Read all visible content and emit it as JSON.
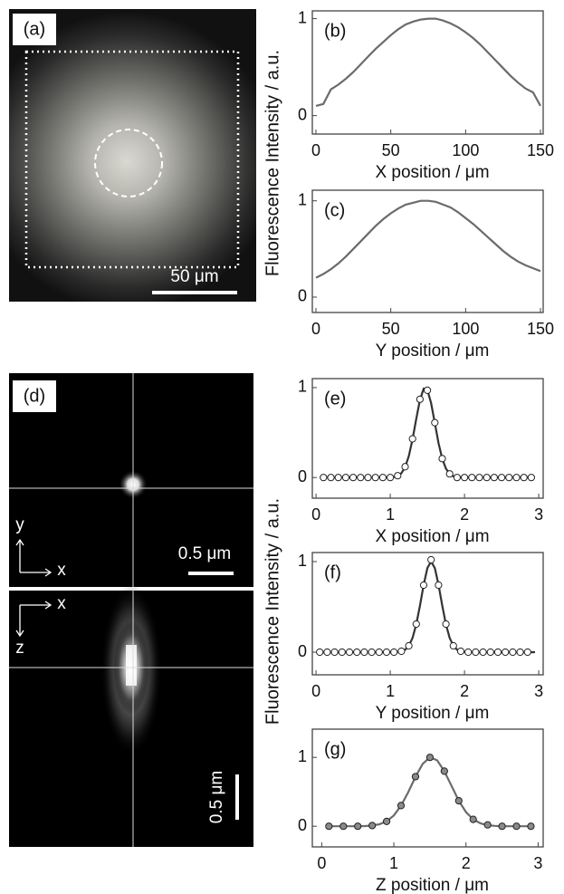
{
  "images": [
    {
      "label": "(a)",
      "scale_bar": "50 μm"
    },
    {
      "label": "(d)",
      "scale_bar_xy": "0.5 μm",
      "axes_xy": [
        "y",
        "x"
      ],
      "axes_xz": [
        "x",
        "z"
      ],
      "scale_bar_xz": "0.5 μm"
    }
  ],
  "y_axis_titles": [
    "Fluorescence Intensity / a.u.",
    "Fluorescence Intensity / a.u."
  ],
  "chart_data": [
    {
      "type": "line",
      "label": "(b)",
      "x_label": "X position / μm",
      "x": [
        0,
        5,
        10,
        15,
        20,
        25,
        30,
        35,
        40,
        45,
        50,
        55,
        60,
        65,
        70,
        75,
        80,
        85,
        90,
        95,
        100,
        105,
        110,
        115,
        120,
        125,
        130,
        135,
        140,
        145,
        150
      ],
      "values": [
        0.1,
        0.12,
        0.27,
        0.32,
        0.38,
        0.45,
        0.53,
        0.61,
        0.69,
        0.76,
        0.83,
        0.89,
        0.94,
        0.97,
        0.99,
        1.0,
        1.0,
        0.98,
        0.95,
        0.91,
        0.86,
        0.8,
        0.73,
        0.65,
        0.57,
        0.49,
        0.41,
        0.34,
        0.28,
        0.24,
        0.1
      ],
      "color": "#6b6b6b",
      "xlim": [
        -2.4,
        151.8
      ],
      "ylim": [
        -0.19,
        1.08
      ],
      "xticks": [
        0,
        50,
        100,
        150
      ],
      "yticks": [
        0,
        1
      ]
    },
    {
      "type": "line",
      "label": "(c)",
      "x_label": "Y position / μm",
      "x": [
        0,
        5,
        10,
        15,
        20,
        25,
        30,
        35,
        40,
        45,
        50,
        55,
        60,
        65,
        70,
        75,
        80,
        85,
        90,
        95,
        100,
        105,
        110,
        115,
        120,
        125,
        130,
        135,
        140,
        145,
        150
      ],
      "values": [
        0.2,
        0.24,
        0.29,
        0.35,
        0.42,
        0.5,
        0.58,
        0.66,
        0.74,
        0.81,
        0.87,
        0.92,
        0.96,
        0.98,
        1.0,
        1.0,
        0.99,
        0.96,
        0.93,
        0.88,
        0.82,
        0.76,
        0.69,
        0.62,
        0.55,
        0.48,
        0.42,
        0.37,
        0.33,
        0.3,
        0.27
      ],
      "color": "#6b6b6b",
      "xlim": [
        -2.4,
        151.8
      ],
      "ylim": [
        -0.16,
        1.11
      ],
      "xticks": [
        0,
        50,
        100,
        150
      ],
      "yticks": [
        0,
        1
      ]
    },
    {
      "type": "scatter",
      "label": "(e)",
      "x_label": "X position / μm",
      "series": [
        {
          "style": "line",
          "color": "#333333",
          "x": [
            0.05,
            0.95,
            1.0,
            1.05,
            1.1,
            1.15,
            1.2,
            1.25,
            1.3,
            1.35,
            1.4,
            1.45,
            1.5,
            1.55,
            1.6,
            1.65,
            1.7,
            1.75,
            1.8,
            1.85,
            1.9,
            1.95,
            2.0,
            2.95
          ],
          "values": [
            0,
            0,
            0.001,
            0.005,
            0.017,
            0.048,
            0.116,
            0.239,
            0.425,
            0.653,
            0.865,
            0.988,
            0.973,
            0.828,
            0.607,
            0.383,
            0.209,
            0.098,
            0.04,
            0.014,
            0.004,
            0.001,
            0,
            0
          ]
        },
        {
          "style": "markers",
          "color": "#222222",
          "marker_fill": "#ffffff",
          "x": [
            0.1,
            0.2,
            0.3,
            0.4,
            0.5,
            0.6,
            0.7,
            0.8,
            0.9,
            1.0,
            1.1,
            1.2,
            1.3,
            1.4,
            1.5,
            1.6,
            1.7,
            1.8,
            1.9,
            2.0,
            2.1,
            2.2,
            2.3,
            2.4,
            2.5,
            2.6,
            2.7,
            2.8,
            2.9
          ],
          "values": [
            0,
            0,
            0,
            0,
            0,
            0,
            0,
            0,
            0,
            0,
            0.02,
            0.12,
            0.43,
            0.87,
            0.97,
            0.61,
            0.21,
            0.04,
            0,
            0,
            0,
            0,
            0,
            0,
            0,
            0,
            0,
            0,
            0
          ]
        }
      ],
      "xlim": [
        -0.05,
        3.06
      ],
      "ylim": [
        -0.23,
        1.1
      ],
      "xticks": [
        0,
        1,
        2,
        3
      ],
      "yticks": [
        0,
        1
      ]
    },
    {
      "type": "scatter",
      "label": "(f)",
      "x_label": "Y position / μm",
      "series": [
        {
          "style": "line",
          "color": "#333333",
          "x": [
            0.05,
            1.0,
            1.05,
            1.1,
            1.15,
            1.2,
            1.25,
            1.3,
            1.35,
            1.4,
            1.45,
            1.5,
            1.55,
            1.6,
            1.65,
            1.7,
            1.75,
            1.8,
            1.85,
            1.9,
            1.95,
            2.0,
            2.05,
            2.1,
            2.95
          ],
          "values": [
            0,
            0,
            0.001,
            0.003,
            0.009,
            0.027,
            0.07,
            0.157,
            0.306,
            0.514,
            0.744,
            0.929,
            1.0,
            0.929,
            0.744,
            0.514,
            0.306,
            0.157,
            0.07,
            0.027,
            0.009,
            0.003,
            0.001,
            0,
            0
          ]
        },
        {
          "style": "markers",
          "color": "#222222",
          "marker_fill": "#ffffff",
          "x": [
            0.05,
            0.15,
            0.25,
            0.35,
            0.45,
            0.55,
            0.65,
            0.75,
            0.85,
            0.95,
            1.05,
            1.15,
            1.25,
            1.35,
            1.45,
            1.55,
            1.65,
            1.75,
            1.85,
            1.95,
            2.05,
            2.15,
            2.25,
            2.35,
            2.45,
            2.55,
            2.65,
            2.75,
            2.85
          ],
          "values": [
            0,
            0,
            0,
            0,
            0,
            0,
            0,
            0,
            0,
            0,
            0,
            0.01,
            0.07,
            0.31,
            0.74,
            1.02,
            0.74,
            0.31,
            0.07,
            0.01,
            0,
            0,
            0,
            0,
            0,
            0,
            0,
            0,
            0
          ]
        }
      ],
      "xlim": [
        -0.05,
        3.06
      ],
      "ylim": [
        -0.25,
        1.1
      ],
      "xticks": [
        0,
        1,
        2,
        3
      ],
      "yticks": [
        0,
        1
      ]
    },
    {
      "type": "scatter",
      "label": "(g)",
      "x_label": "Z position / μm",
      "series": [
        {
          "style": "line",
          "color": "#6b6b6b",
          "x": [
            0.1,
            0.5,
            0.6,
            0.7,
            0.8,
            0.9,
            1.0,
            1.1,
            1.2,
            1.3,
            1.4,
            1.5,
            1.6,
            1.7,
            1.8,
            1.9,
            2.0,
            2.1,
            2.2,
            2.3,
            2.4,
            2.5,
            2.9
          ],
          "values": [
            0,
            0,
            0.003,
            0.01,
            0.029,
            0.072,
            0.157,
            0.3,
            0.496,
            0.72,
            0.906,
            1.0,
            0.957,
            0.8,
            0.585,
            0.37,
            0.206,
            0.1,
            0.042,
            0.015,
            0.005,
            0.001,
            0
          ]
        },
        {
          "style": "markers",
          "color": "#222222",
          "marker_fill": "#8a8a8a",
          "x": [
            0.1,
            0.3,
            0.5,
            0.7,
            0.9,
            1.1,
            1.3,
            1.5,
            1.7,
            1.9,
            2.1,
            2.3,
            2.5,
            2.7,
            2.9
          ],
          "values": [
            0,
            0,
            0,
            0.01,
            0.07,
            0.3,
            0.72,
            1.0,
            0.8,
            0.37,
            0.1,
            0.02,
            0,
            0,
            0
          ]
        }
      ],
      "xlim": [
        -0.13,
        3.07
      ],
      "ylim": [
        -0.3,
        1.41
      ],
      "xticks": [
        0,
        1,
        2,
        3
      ],
      "yticks": [
        0,
        1
      ]
    }
  ]
}
